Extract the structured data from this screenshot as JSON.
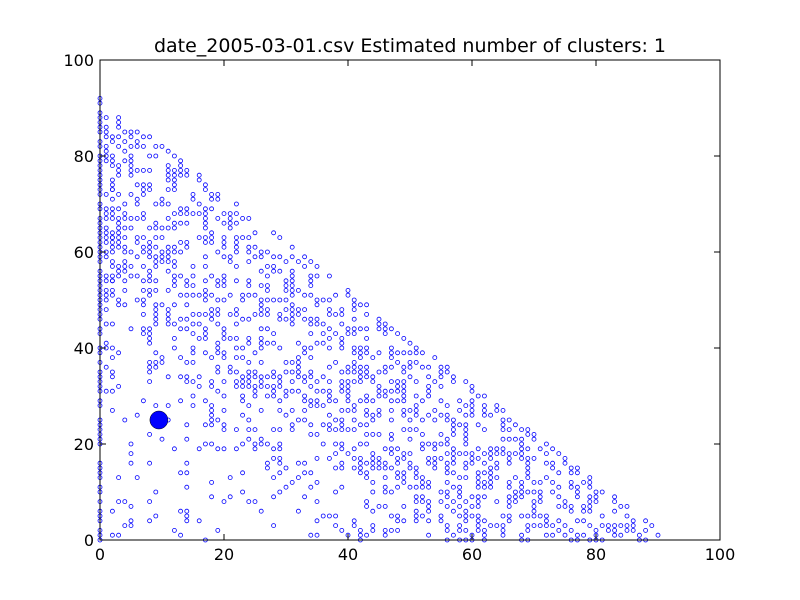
{
  "chart_data": {
    "type": "scatter",
    "title": "date_2005-03-01.csv   Estimated number of clusters: 1",
    "xlabel": "",
    "ylabel": "",
    "xlim": [
      0,
      100
    ],
    "ylim": [
      0,
      100
    ],
    "x_ticks": [
      "0",
      "20",
      "40",
      "60",
      "80",
      "100"
    ],
    "y_ticks": [
      "0",
      "20",
      "40",
      "60",
      "80",
      "100"
    ],
    "grid": false,
    "legend": "none",
    "colors": {
      "points": "#0000ff",
      "cluster_center": "#0000ff",
      "axes": "#000000",
      "background": "#ffffff"
    },
    "point_region": {
      "description_of_shape": "dense triangular cloud bounded by x>=0, y>=0, x+y<=92",
      "x_max": 92,
      "y_max": 92,
      "bound_sum": 92
    },
    "cluster_centers": [
      {
        "x": 9.5,
        "y": 25
      }
    ]
  }
}
